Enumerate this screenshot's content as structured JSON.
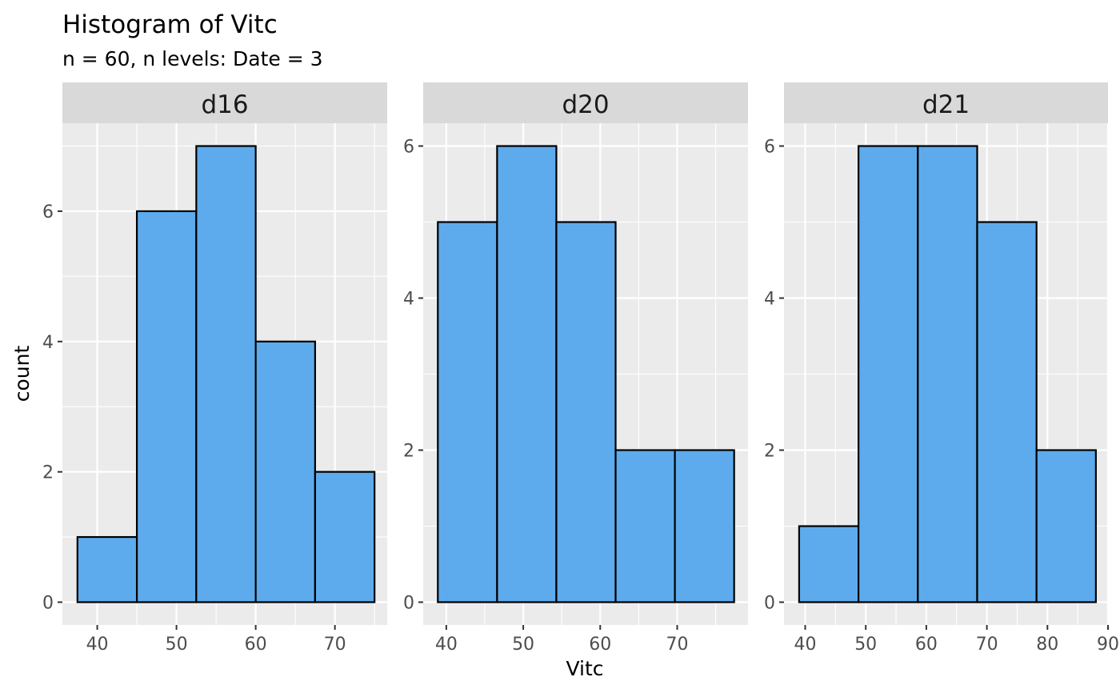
{
  "chart_data": {
    "type": "bar",
    "title": "Histogram of Vitc",
    "subtitle": "n = 60, n levels: Date = 3",
    "xlabel": "Vitc",
    "ylabel": "count",
    "bar_color": "#5DABEC",
    "bar_outline": "#000000",
    "panel_background": "#EBEBEB",
    "strip_background": "#D9D9D9",
    "grid": true,
    "facets": [
      {
        "label": "d16",
        "xlim": [
          35.6,
          76.6
        ],
        "ylim": [
          -0.35,
          7.35
        ],
        "x_ticks": [
          40,
          50,
          60,
          70
        ],
        "y_ticks": [
          0,
          2,
          4,
          6
        ],
        "bins": [
          {
            "x0": 37.5,
            "x1": 45,
            "count": 1
          },
          {
            "x0": 45,
            "x1": 52.5,
            "count": 6
          },
          {
            "x0": 52.5,
            "x1": 60,
            "count": 7
          },
          {
            "x0": 60,
            "x1": 67.5,
            "count": 4
          },
          {
            "x0": 67.5,
            "x1": 75,
            "count": 2
          }
        ]
      },
      {
        "label": "d20",
        "xlim": [
          37.0,
          79.2
        ],
        "ylim": [
          -0.3,
          6.3
        ],
        "x_ticks": [
          40,
          50,
          60,
          70
        ],
        "y_ticks": [
          0,
          2,
          4,
          6
        ],
        "bins": [
          {
            "x0": 38.9,
            "x1": 46.6,
            "count": 5
          },
          {
            "x0": 46.6,
            "x1": 54.3,
            "count": 6
          },
          {
            "x0": 54.3,
            "x1": 62.0,
            "count": 5
          },
          {
            "x0": 62.0,
            "x1": 69.7,
            "count": 2
          },
          {
            "x0": 69.7,
            "x1": 77.4,
            "count": 2
          }
        ]
      },
      {
        "label": "d21",
        "xlim": [
          36.5,
          90.0
        ],
        "ylim": [
          -0.3,
          6.3
        ],
        "x_ticks": [
          40,
          50,
          60,
          70,
          80,
          90
        ],
        "y_ticks": [
          0,
          2,
          4,
          6
        ],
        "bins": [
          {
            "x0": 39.0,
            "x1": 48.8,
            "count": 1
          },
          {
            "x0": 48.8,
            "x1": 58.6,
            "count": 6
          },
          {
            "x0": 58.6,
            "x1": 68.4,
            "count": 6
          },
          {
            "x0": 68.4,
            "x1": 78.2,
            "count": 5
          },
          {
            "x0": 78.2,
            "x1": 88.0,
            "count": 2
          }
        ]
      }
    ]
  }
}
